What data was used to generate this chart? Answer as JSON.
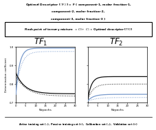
{
  "title1": "Optimal Descriptor [ ",
  "title_tf2": "TF",
  "title2": " ] = F ( component-1, molar fraction-1,",
  "title3": "component-2, molar fraction-2,",
  "title4": "component-3, molar fraction-3 )",
  "box_text": "Flash point of ternary mixture  = C₀+  C₁ × Optimal descriptor [ TF₂ ]",
  "sub1_title": "TF",
  "sub2_title": "TF",
  "xlabel": "Nepochs",
  "ylabel": "Determination coefficient",
  "legend_text": "Active training set (◦),  Passive training set (+),  Calibration set (−),  Validation set (+)",
  "ylim": [
    0.7,
    1.0
  ],
  "xlim": [
    0,
    30
  ],
  "yticks": [
    0.7,
    0.8,
    0.9,
    1.0
  ],
  "xticks": [
    0,
    5,
    10,
    15,
    20,
    25,
    30
  ],
  "blue_color": "#7799CC",
  "black_color": "#111111",
  "gray_color": "#555555"
}
